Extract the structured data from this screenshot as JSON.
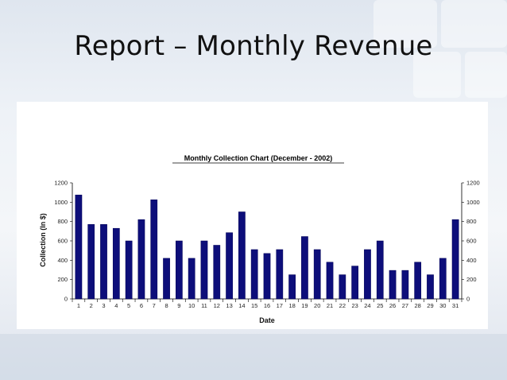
{
  "slide": {
    "title": "Report – Monthly Revenue"
  },
  "colors": {
    "bar": "#0d0e7a",
    "bar_edge": "#000055"
  },
  "chart_data": {
    "type": "bar",
    "title": "Monthly Collection Chart (December - 2002)",
    "xlabel": "Date",
    "ylabel": "Collection (In $)",
    "ylim": [
      0,
      1200
    ],
    "yticks": [
      0,
      200,
      400,
      600,
      800,
      1000,
      1200
    ],
    "right_axis_ticks": true,
    "legend": "none",
    "grid": false,
    "categories": [
      "1",
      "2",
      "3",
      "4",
      "5",
      "6",
      "7",
      "8",
      "9",
      "10",
      "11",
      "12",
      "13",
      "14",
      "15",
      "16",
      "17",
      "18",
      "19",
      "20",
      "21",
      "22",
      "23",
      "24",
      "25",
      "26",
      "27",
      "28",
      "29",
      "30",
      "31"
    ],
    "values": [
      1075,
      770,
      770,
      730,
      600,
      820,
      1025,
      420,
      600,
      420,
      600,
      555,
      685,
      900,
      510,
      470,
      510,
      250,
      645,
      510,
      380,
      250,
      340,
      510,
      600,
      295,
      295,
      380,
      250,
      420,
      820
    ]
  }
}
